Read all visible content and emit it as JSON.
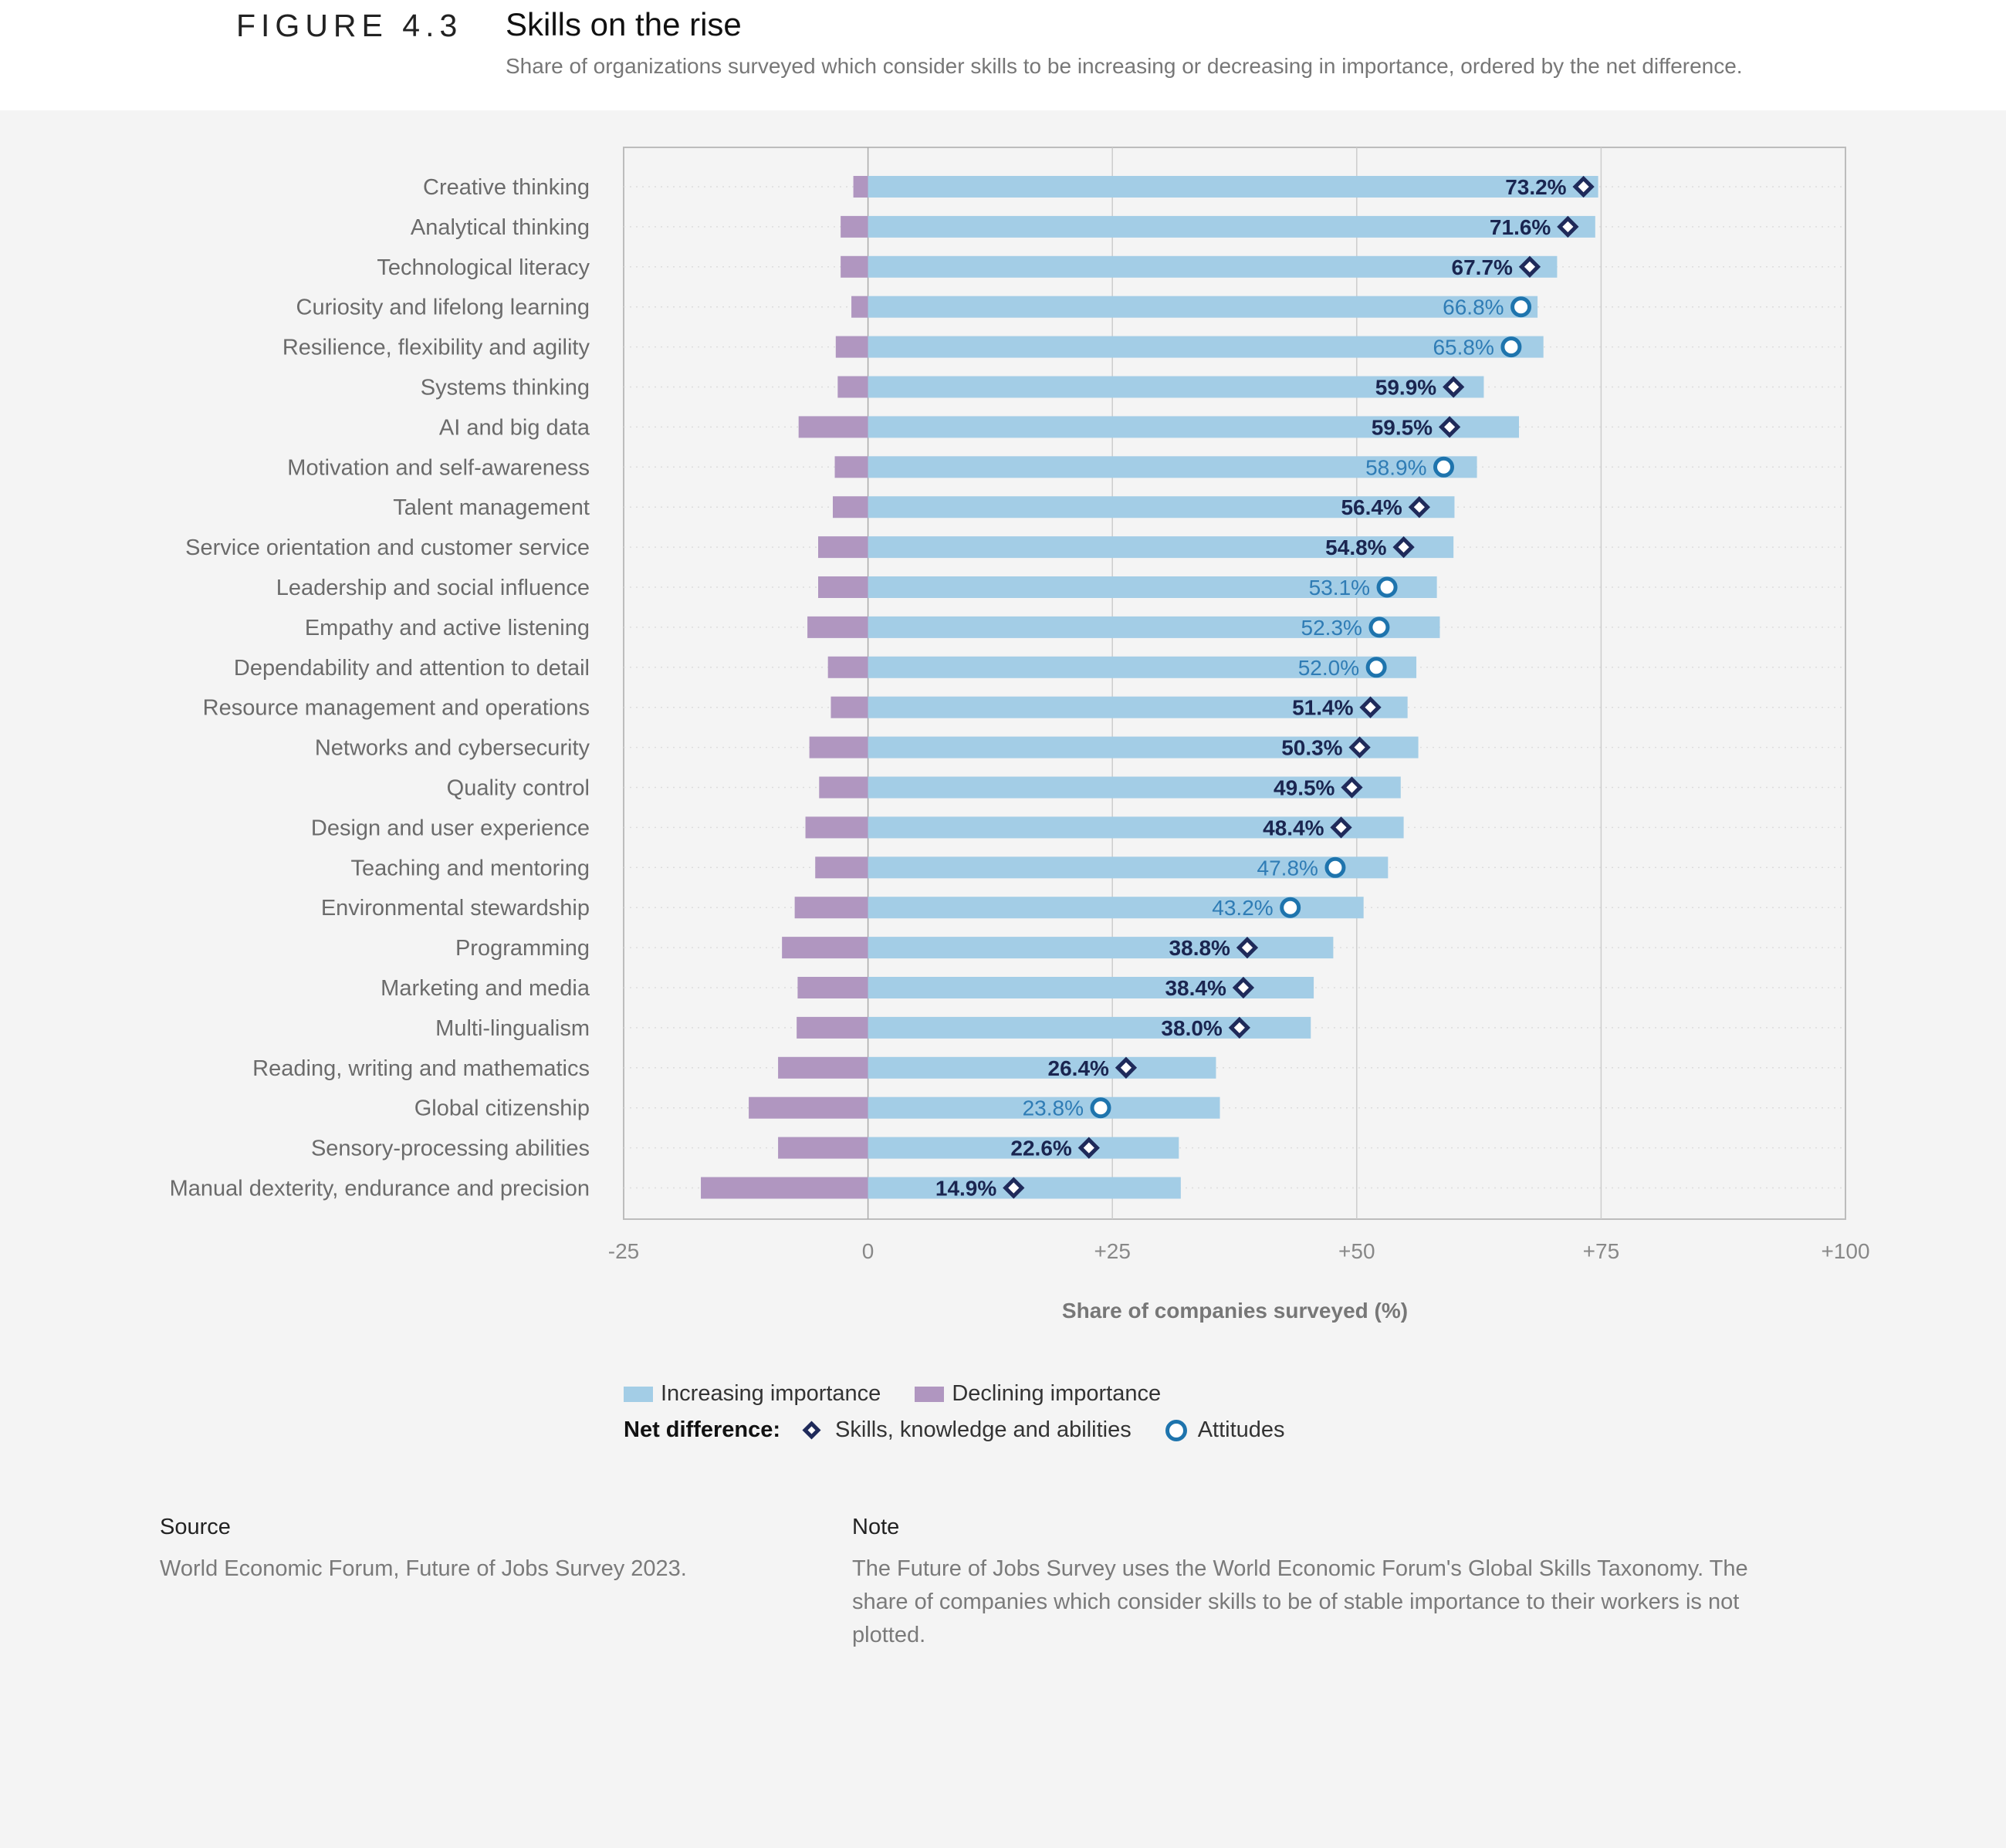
{
  "header": {
    "figure_label": "FIGURE 4.3",
    "title": "Skills on the rise",
    "subtitle": "Share of organizations surveyed which consider skills to be increasing or decreasing in importance, ordered by the net difference."
  },
  "colors": {
    "increasing": "#a3cde6",
    "declining": "#b096c0",
    "skill_marker": "#1f2a5a",
    "attitude_marker": "#1e74ad"
  },
  "chart_data": {
    "type": "bar",
    "orientation": "horizontal",
    "title": "Skills on the rise",
    "xlabel": "Share of companies surveyed (%)",
    "ylabel": "",
    "xlim": [
      -25,
      100
    ],
    "xticks": [
      -25,
      0,
      25,
      50,
      75,
      100
    ],
    "xtick_labels": [
      "-25",
      "0",
      "+25",
      "+50",
      "+75",
      "+100"
    ],
    "categories": [
      "Creative thinking",
      "Analytical thinking",
      "Technological literacy",
      "Curiosity and lifelong learning",
      "Resilience, flexibility and agility",
      "Systems thinking",
      "AI and big data",
      "Motivation and self-awareness",
      "Talent management",
      "Service orientation and customer service",
      "Leadership and social influence",
      "Empathy and active listening",
      "Dependability and attention to detail",
      "Resource management and operations",
      "Networks and cybersecurity",
      "Quality control",
      "Design and user experience",
      "Teaching and mentoring",
      "Environmental stewardship",
      "Programming",
      "Marketing and media",
      "Multi-lingualism",
      "Reading, writing and mathematics",
      "Global citizenship",
      "Sensory-processing abilities",
      "Manual dexterity, endurance and precision"
    ],
    "series": [
      {
        "name": "Increasing importance",
        "values": [
          74.7,
          74.4,
          70.5,
          68.5,
          69.1,
          63.0,
          66.6,
          62.3,
          60.0,
          59.9,
          58.2,
          58.5,
          56.1,
          55.2,
          56.3,
          54.5,
          54.8,
          53.2,
          50.7,
          47.6,
          45.6,
          45.3,
          35.6,
          36.0,
          31.8,
          32.0
        ]
      },
      {
        "name": "Declining importance",
        "values": [
          1.5,
          2.8,
          2.8,
          1.7,
          3.3,
          3.1,
          7.1,
          3.4,
          3.6,
          5.1,
          5.1,
          6.2,
          4.1,
          3.8,
          6.0,
          5.0,
          6.4,
          5.4,
          7.5,
          8.8,
          7.2,
          7.3,
          9.2,
          12.2,
          9.2,
          17.1
        ]
      },
      {
        "name": "Net difference",
        "values": [
          73.2,
          71.6,
          67.7,
          66.8,
          65.8,
          59.9,
          59.5,
          58.9,
          56.4,
          54.8,
          53.1,
          52.3,
          52.0,
          51.4,
          50.3,
          49.5,
          48.4,
          47.8,
          43.2,
          38.8,
          38.4,
          38.0,
          26.4,
          23.8,
          22.6,
          14.9
        ],
        "labels": [
          "73.2%",
          "71.6%",
          "67.7%",
          "66.8%",
          "65.8%",
          "59.9%",
          "59.5%",
          "58.9%",
          "56.4%",
          "54.8%",
          "53.1%",
          "52.3%",
          "52.0%",
          "51.4%",
          "50.3%",
          "49.5%",
          "48.4%",
          "47.8%",
          "43.2%",
          "38.8%",
          "38.4%",
          "38.0%",
          "26.4%",
          "23.8%",
          "22.6%",
          "14.9%"
        ],
        "marker_type": [
          "skill",
          "skill",
          "skill",
          "attitude",
          "attitude",
          "skill",
          "skill",
          "attitude",
          "skill",
          "skill",
          "attitude",
          "attitude",
          "attitude",
          "skill",
          "skill",
          "skill",
          "skill",
          "attitude",
          "attitude",
          "skill",
          "skill",
          "skill",
          "skill",
          "attitude",
          "skill",
          "skill"
        ]
      }
    ],
    "grid": true
  },
  "legend": {
    "increasing_label": "Increasing importance",
    "declining_label": "Declining importance",
    "net_label": "Net difference:",
    "skills_label": "Skills, knowledge and abilities",
    "attitudes_label": "Attitudes"
  },
  "footer": {
    "source_heading": "Source",
    "source_text": "World Economic Forum, Future of Jobs Survey 2023.",
    "note_heading": "Note",
    "note_text": "The Future of Jobs Survey uses the World Economic Forum's Global Skills Taxonomy. The share of companies which consider skills to be of stable importance to their workers is not plotted."
  }
}
